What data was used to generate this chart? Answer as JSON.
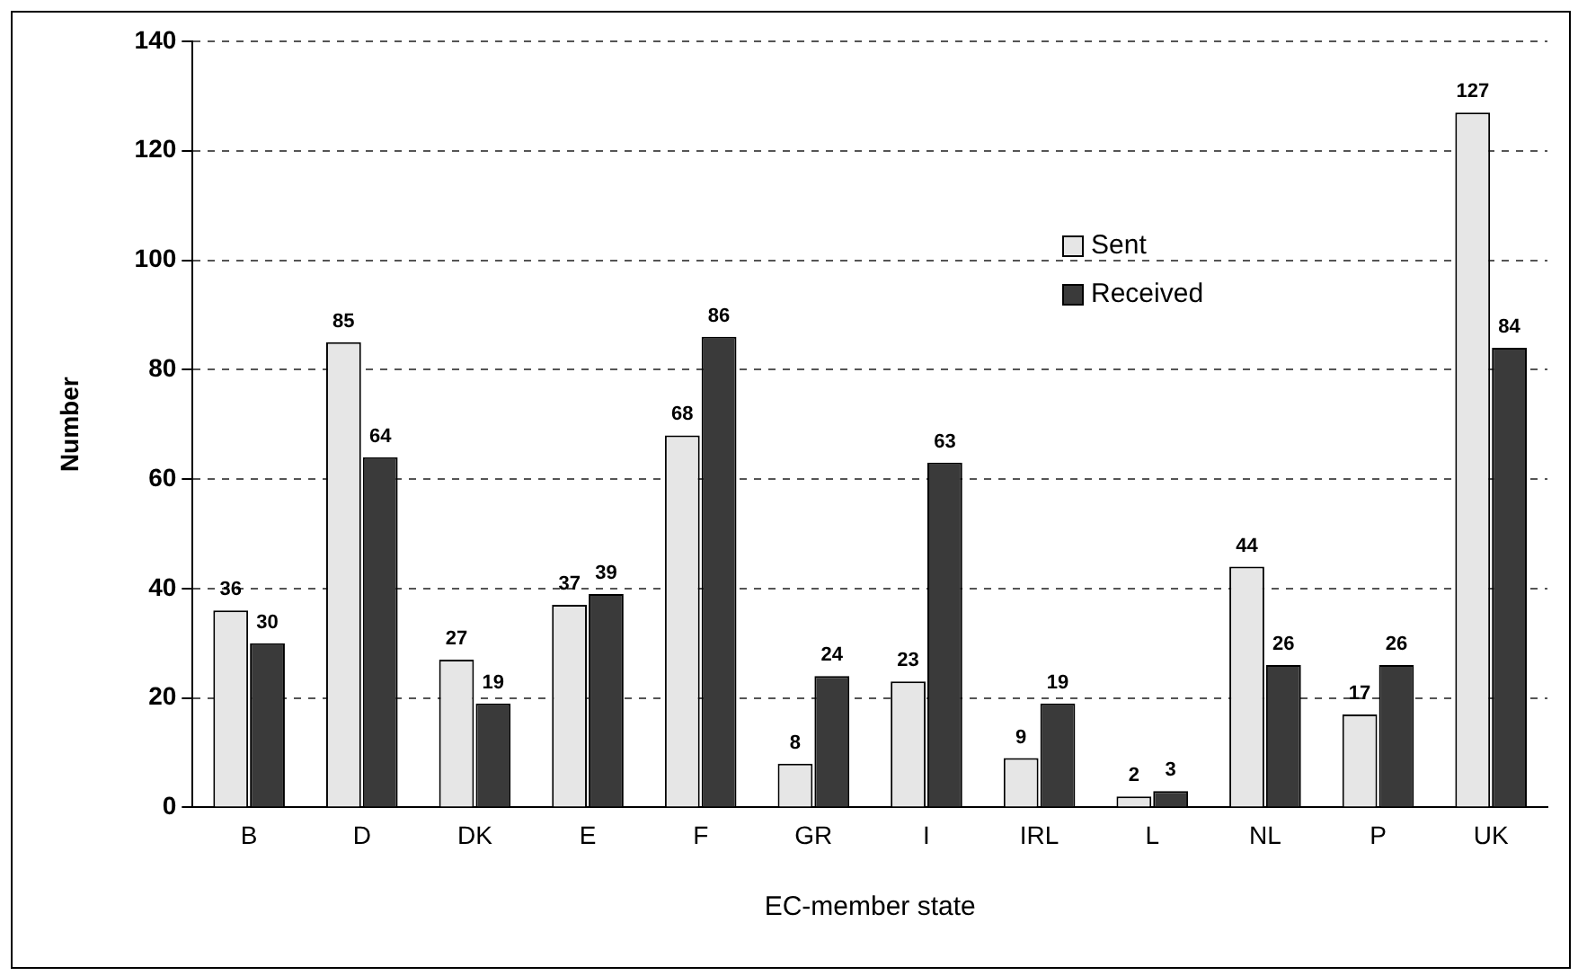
{
  "chart_data": {
    "type": "bar",
    "xlabel": "EC-member state",
    "ylabel": "Number",
    "categories": [
      "B",
      "D",
      "DK",
      "E",
      "F",
      "GR",
      "I",
      "IRL",
      "L",
      "NL",
      "P",
      "UK"
    ],
    "series": [
      {
        "name": "Sent",
        "color": "#e6e6e6",
        "values": [
          36,
          85,
          27,
          37,
          68,
          8,
          23,
          9,
          2,
          44,
          17,
          127
        ]
      },
      {
        "name": "Received",
        "color": "#3a3a3a",
        "values": [
          30,
          64,
          19,
          39,
          86,
          24,
          63,
          19,
          3,
          26,
          26,
          84
        ]
      }
    ],
    "ylim": [
      0,
      140
    ],
    "yticks": [
      0,
      20,
      40,
      60,
      80,
      100,
      120,
      140
    ],
    "grid": "y",
    "legend": "top right",
    "data_labels": true
  }
}
